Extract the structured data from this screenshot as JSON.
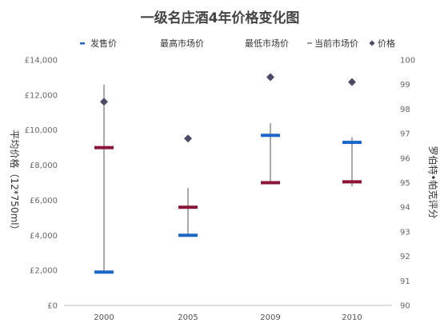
{
  "chart_data": {
    "type": "stock",
    "title": "一级名庄酒4年价格变化图",
    "categories": [
      "2000",
      "2005",
      "2009",
      "2010"
    ],
    "series": [
      {
        "name": "发售价",
        "values": [
          1900,
          4000,
          9700,
          9300
        ],
        "color": "#1a66c7"
      },
      {
        "name": "最高市场价",
        "values": [
          12600,
          6700,
          10400,
          9600
        ]
      },
      {
        "name": "最低市场价",
        "values": [
          1900,
          4000,
          7000,
          6800
        ]
      },
      {
        "name": "当前市场价",
        "values": [
          9000,
          5600,
          7000,
          7050
        ],
        "color": "#8b1538"
      },
      {
        "name": "价格",
        "values": [
          98.3,
          96.8,
          99.3,
          99.1
        ],
        "color": "#4a4a6a",
        "axis": "right"
      }
    ],
    "legend": {
      "items": [
        "发售价",
        "最高市场价",
        "最低市场价",
        "当前市场价",
        "价格"
      ],
      "placement": "top"
    },
    "left_axis": {
      "label": "平均价格（12*750ml）",
      "ylim": [
        0,
        14000
      ],
      "ticks": [
        "£0",
        "£2,000",
        "£4,000",
        "£6,000",
        "£8,000",
        "£10,000",
        "£12,000",
        "£14,000"
      ]
    },
    "right_axis": {
      "label": "罗伯特•帕克评分",
      "ylim": [
        90,
        100
      ],
      "ticks": [
        "90",
        "91",
        "92",
        "93",
        "94",
        "95",
        "96",
        "97",
        "98",
        "99",
        "100"
      ]
    },
    "grid": false
  }
}
